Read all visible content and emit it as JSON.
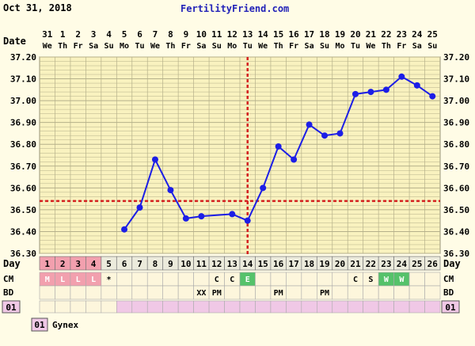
{
  "header": {
    "date_label": "Oct 31, 2018",
    "site": "FertilityFriend.com"
  },
  "row_labels": {
    "date": "Date",
    "day": "Day",
    "cm": "CM",
    "bd": "BD",
    "cycle": "01"
  },
  "colors": {
    "background": "#fffce6",
    "plot_bg": "#f9f2bf",
    "grid": "#b5b08a",
    "line": "#1c1ee6",
    "coverline": "#d42020",
    "period": "#f2a0ae",
    "egg_white": "#55c26a",
    "watery": "#55c26a",
    "gynex_box": "#f0c8e6"
  },
  "legend": {
    "box": "01",
    "label": "Gynex"
  },
  "chart_data": {
    "type": "line",
    "title": "",
    "dates": [
      "31",
      "1",
      "2",
      "3",
      "4",
      "5",
      "6",
      "7",
      "8",
      "9",
      "10",
      "11",
      "12",
      "13",
      "14",
      "15",
      "16",
      "17",
      "18",
      "19",
      "20",
      "21",
      "22",
      "23",
      "24",
      "25"
    ],
    "weekdays": [
      "We",
      "Th",
      "Fr",
      "Sa",
      "Su",
      "Mo",
      "Tu",
      "We",
      "Th",
      "Fr",
      "Sa",
      "Su",
      "Mo",
      "Tu",
      "We",
      "Th",
      "Fr",
      "Sa",
      "Su",
      "Mo",
      "Tu",
      "We",
      "Th",
      "Fr",
      "Sa",
      "Su"
    ],
    "days": [
      "1",
      "2",
      "3",
      "4",
      "5",
      "6",
      "7",
      "8",
      "9",
      "10",
      "11",
      "12",
      "13",
      "14",
      "15",
      "16",
      "17",
      "18",
      "19",
      "20",
      "21",
      "22",
      "23",
      "24",
      "25",
      "26"
    ],
    "y_ticks": [
      "37.20",
      "37.10",
      "37.00",
      "36.90",
      "36.80",
      "36.70",
      "36.60",
      "36.50",
      "36.40",
      "36.30"
    ],
    "ylim": [
      36.3,
      37.2
    ],
    "temperatures": [
      null,
      null,
      null,
      null,
      null,
      36.41,
      36.51,
      36.73,
      36.59,
      36.46,
      36.47,
      null,
      36.48,
      36.45,
      36.6,
      36.79,
      36.73,
      36.89,
      36.84,
      36.85,
      37.03,
      37.04,
      37.05,
      37.11,
      37.07,
      37.02
    ],
    "dashed_segments": [
      [
        10,
        12
      ]
    ],
    "coverline": 36.54,
    "ovulation_day": 14,
    "cervical_mucus": [
      "M",
      "L",
      "L",
      "L",
      "*",
      "",
      "",
      "",
      "",
      "",
      "",
      "C",
      "C",
      "E",
      "",
      "",
      "",
      "",
      "",
      "",
      "C",
      "S",
      "W",
      "W",
      "",
      ""
    ],
    "intercourse": [
      "",
      "",
      "",
      "",
      "",
      "",
      "",
      "",
      "",
      "",
      "XX",
      "PM",
      "",
      "",
      "",
      "PM",
      "",
      "",
      "PM",
      "",
      "",
      "",
      "",
      "",
      "",
      ""
    ],
    "cycle_flags": [
      "0",
      "0",
      "0",
      "0",
      "0",
      "1",
      "1",
      "1",
      "1",
      "1",
      "1",
      "1",
      "1",
      "1",
      "1",
      "1",
      "1",
      "1",
      "1",
      "1",
      "1",
      "1",
      "1",
      "1",
      "1",
      "1"
    ]
  }
}
